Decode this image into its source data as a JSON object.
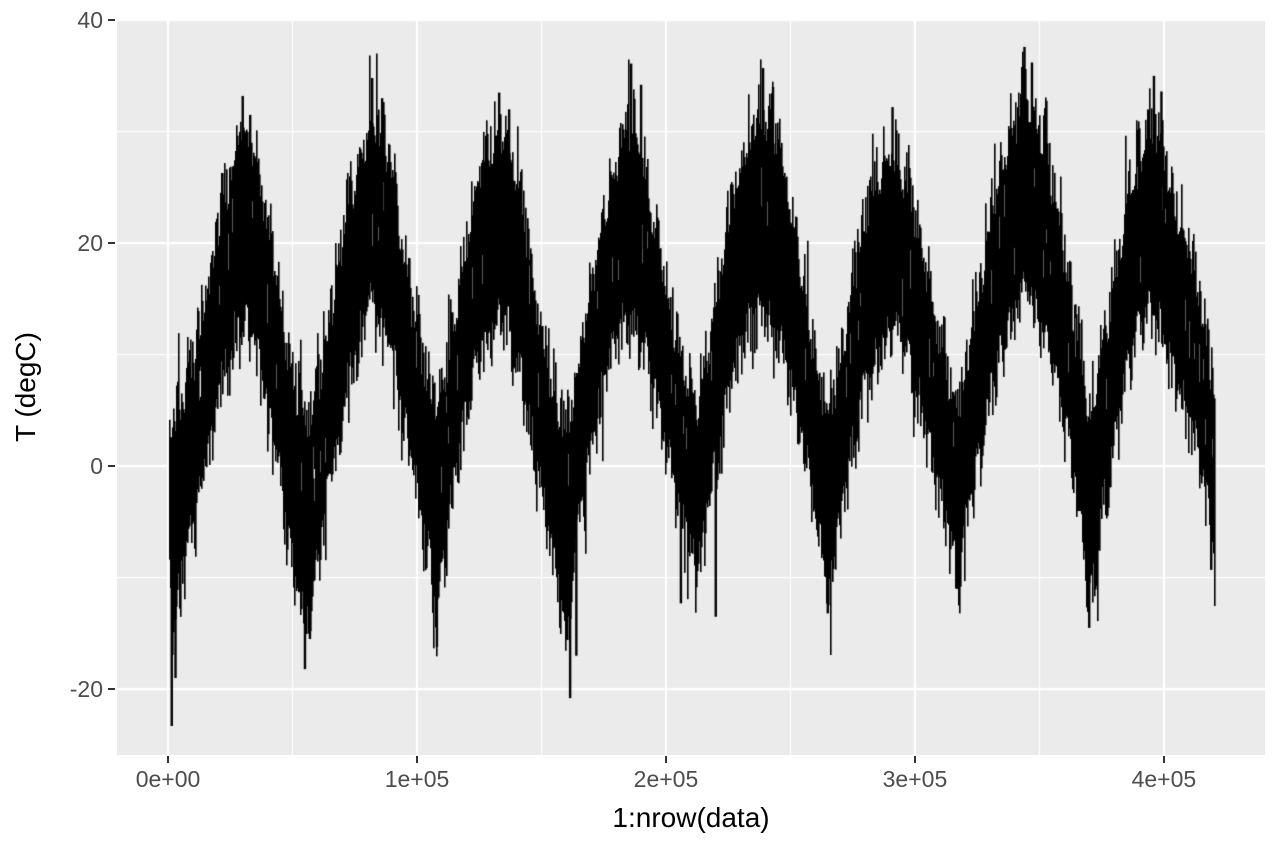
{
  "chart_data": {
    "type": "line",
    "title": "",
    "xlabel": "1:nrow(data)",
    "ylabel": "T (degC)",
    "legend": "none",
    "grid": "on",
    "panel_bg": "#EBEBEB",
    "figure_bg": "#FFFFFF",
    "grid_color": "#FFFFFF",
    "series_color": "#000000",
    "tick_color": "#333333",
    "tick_label_color": "#4D4D4D",
    "axis_title_color": "#000000",
    "xlim": [
      -20500,
      440600
    ],
    "ylim": [
      -25.9,
      40.1
    ],
    "x_major_ticks": [
      {
        "value": 0,
        "label": "0e+00"
      },
      {
        "value": 100000,
        "label": "1e+05"
      },
      {
        "value": 200000,
        "label": "2e+05"
      },
      {
        "value": 300000,
        "label": "3e+05"
      },
      {
        "value": 400000,
        "label": "4e+05"
      }
    ],
    "x_minor_ticks": [
      50000,
      150000,
      250000,
      350000
    ],
    "y_major_ticks": [
      {
        "value": 40,
        "label": "40"
      },
      {
        "value": 20,
        "label": "20"
      },
      {
        "value": 0,
        "label": "0"
      },
      {
        "value": -20,
        "label": "-20"
      }
    ],
    "y_minor_ticks": [
      30,
      10,
      -10
    ],
    "x_data_range": [
      0,
      420500
    ],
    "y_data_range": [
      -23.3,
      37.6
    ],
    "n_seasonal_cycles": 8,
    "envelope": {
      "x": [
        0,
        2000,
        5000,
        10000,
        15000,
        20000,
        25000,
        28000,
        31000,
        35000,
        40000,
        45000,
        50000,
        55000,
        58000,
        62000,
        67000,
        72000,
        77000,
        81000,
        85000,
        90000,
        95000,
        100000,
        104000,
        108000,
        112000,
        117000,
        122000,
        127000,
        132000,
        136000,
        141000,
        146000,
        151000,
        156000,
        160000,
        164000,
        169000,
        174000,
        179000,
        184000,
        188000,
        193000,
        198000,
        203000,
        208000,
        212000,
        216000,
        221000,
        226000,
        231000,
        236000,
        240000,
        245000,
        250000,
        255000,
        260000,
        265000,
        269000,
        274000,
        279000,
        284000,
        289000,
        293000,
        298000,
        303000,
        308000,
        313000,
        317000,
        321000,
        326000,
        331000,
        336000,
        341000,
        345000,
        350000,
        355000,
        360000,
        365000,
        370000,
        374000,
        379000,
        384000,
        389000,
        394000,
        398000,
        403000,
        408000,
        412000,
        416000,
        419000,
        420500
      ],
      "low": [
        -6,
        -14,
        -8,
        -4,
        2,
        8,
        12,
        14,
        14,
        12,
        6,
        0,
        -8,
        -13,
        -9,
        -4,
        3,
        9,
        13,
        16,
        14,
        11,
        5,
        -1,
        -6,
        -12,
        -4,
        3,
        9,
        13,
        15,
        14,
        10,
        4,
        -2,
        -8,
        -15,
        -5,
        2,
        8,
        12,
        15,
        14,
        10,
        5,
        0,
        -4,
        -8,
        -3,
        3,
        9,
        13,
        15,
        15,
        13,
        9,
        3,
        -2,
        -10,
        -4,
        2,
        8,
        11,
        13,
        13,
        10,
        6,
        1,
        -4,
        -9,
        -3,
        3,
        9,
        13,
        16,
        17,
        14,
        10,
        5,
        -1,
        -11,
        -4,
        2,
        9,
        13,
        15,
        14,
        10,
        7,
        4,
        0,
        -5,
        -8
      ],
      "high": [
        4,
        2,
        4,
        8,
        13,
        20,
        25,
        28,
        29,
        27,
        20,
        13,
        6,
        3,
        4,
        8,
        15,
        22,
        26,
        30,
        29,
        24,
        17,
        10,
        6,
        4,
        8,
        15,
        22,
        26,
        29,
        28,
        24,
        16,
        9,
        4,
        2,
        7,
        14,
        20,
        25,
        29,
        29,
        23,
        17,
        11,
        7,
        4,
        8,
        15,
        22,
        26,
        29,
        30,
        27,
        22,
        15,
        8,
        3,
        7,
        14,
        20,
        24,
        27,
        26,
        23,
        18,
        12,
        7,
        4,
        8,
        15,
        22,
        27,
        30,
        32,
        29,
        24,
        17,
        10,
        3,
        8,
        14,
        21,
        26,
        29,
        28,
        23,
        20,
        16,
        11,
        7,
        3
      ]
    },
    "extreme_spikes": [
      [
        1500,
        -23.3
      ],
      [
        3000,
        -19
      ],
      [
        30000,
        33.2
      ],
      [
        33000,
        31.5
      ],
      [
        55000,
        -18.2
      ],
      [
        57000,
        -15.5
      ],
      [
        82000,
        34.8
      ],
      [
        86000,
        33
      ],
      [
        108000,
        -16.2
      ],
      [
        133000,
        33.5
      ],
      [
        137000,
        32
      ],
      [
        161500,
        -20.8
      ],
      [
        164000,
        -17
      ],
      [
        186000,
        36.1
      ],
      [
        190000,
        34.2
      ],
      [
        206000,
        -12.3
      ],
      [
        220000,
        -13.5
      ],
      [
        239000,
        35.7
      ],
      [
        243000,
        34
      ],
      [
        265000,
        -13.2
      ],
      [
        291000,
        32.2
      ],
      [
        317000,
        -11
      ],
      [
        344000,
        37.6
      ],
      [
        347000,
        36.2
      ],
      [
        370000,
        -14.5
      ],
      [
        396000,
        35
      ],
      [
        399000,
        33.6
      ],
      [
        419000,
        -9.3
      ]
    ],
    "noise": {
      "edge_amp": 4.5,
      "spike_prob": 0.08,
      "spike_extra": 5,
      "daily_mod": 0.9
    }
  }
}
